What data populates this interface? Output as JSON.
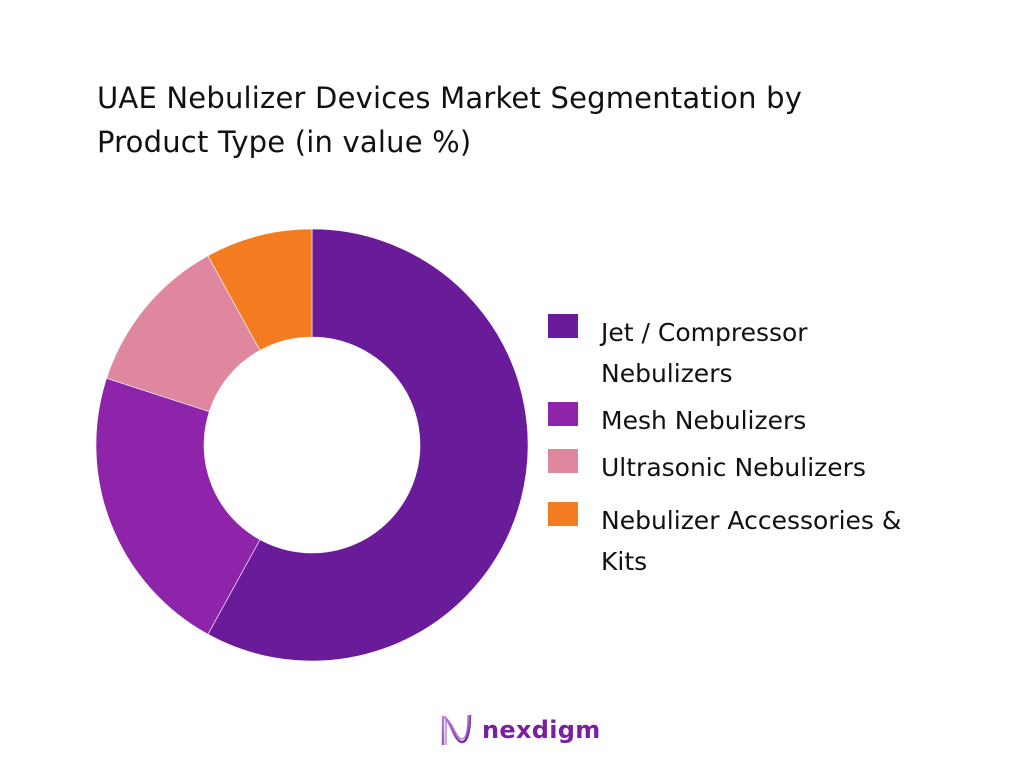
{
  "title": {
    "line1": "UAE Nebulizer Devices Market Segmentation by",
    "line2": "Product Type (in value %)"
  },
  "legend": {
    "items": [
      {
        "label_line1": "Jet / Compressor",
        "label_line2": "Nebulizers",
        "color": "#6a1b9a"
      },
      {
        "label_line1": "Mesh Nebulizers",
        "label_line2": "",
        "color": "#8e24aa"
      },
      {
        "label_line1": "Ultrasonic Nebulizers",
        "label_line2": "",
        "color": "#de879f"
      },
      {
        "label_line1": "Nebulizer Accessories &",
        "label_line2": "Kits",
        "color": "#f47c20"
      }
    ]
  },
  "logo": {
    "text": "nexdigm"
  },
  "chart_data": {
    "type": "pie",
    "variant": "donut",
    "title": "UAE Nebulizer Devices Market Segmentation by Product Type (in value %)",
    "categories": [
      "Jet / Compressor Nebulizers",
      "Mesh Nebulizers",
      "Ultrasonic Nebulizers",
      "Nebulizer Accessories & Kits"
    ],
    "values": [
      58,
      22,
      12,
      8
    ],
    "colors": [
      "#6a1b9a",
      "#8e24aa",
      "#de879f",
      "#f47c20"
    ],
    "start_angle_deg": 0,
    "direction": "clockwise",
    "legend_position": "right",
    "data_labels": false
  }
}
